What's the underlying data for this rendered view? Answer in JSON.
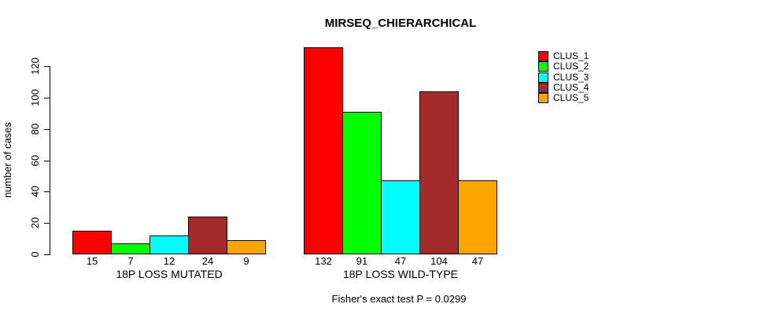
{
  "chart_data": {
    "type": "bar",
    "title": "MIRSEQ_CHIERARCHICAL",
    "ylabel": "number of cases",
    "xlabel": "",
    "ylim": [
      0,
      132
    ],
    "yticks": [
      0,
      20,
      40,
      60,
      80,
      100,
      120
    ],
    "grid": false,
    "legend_position": "topright",
    "bar_border_color": "#000000",
    "background_color": "#ffffff",
    "categories": [
      "18P LOSS MUTATED",
      "18P LOSS WILD-TYPE"
    ],
    "series": [
      {
        "name": "CLUS_1",
        "color": "#ff0000",
        "values": [
          15,
          132
        ]
      },
      {
        "name": "CLUS_2",
        "color": "#00ff00",
        "values": [
          7,
          91
        ]
      },
      {
        "name": "CLUS_3",
        "color": "#00ffff",
        "values": [
          12,
          47
        ]
      },
      {
        "name": "CLUS_4",
        "color": "#a52a2a",
        "values": [
          24,
          104
        ]
      },
      {
        "name": "CLUS_5",
        "color": "#ffa500",
        "values": [
          9,
          47
        ]
      }
    ],
    "value_labels_shown": true,
    "annotation": "Fisher's exact test P = 0.0299"
  }
}
